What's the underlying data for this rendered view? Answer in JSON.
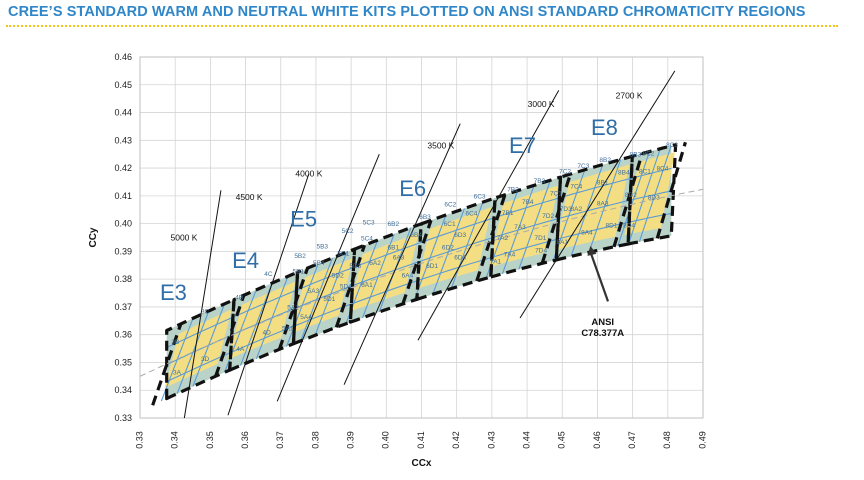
{
  "page": {
    "title": "CREE’S STANDARD WARM AND NEUTRAL WHITE KITS PLOTTED ON ANSI STANDARD CHROMATICITY REGIONS"
  },
  "colors": {
    "title": "#2f86c8",
    "title_rule": "#f0c417",
    "cree_kit_fill": "#f4de83",
    "ansi_quad_fill": "#b9d3c9",
    "grid_line": "#5b9bd5",
    "kit_outline": "#111111",
    "kit_label": "#2f6ea8",
    "cell_label": "#3f6f9b",
    "blackbody": "#aaaaaa"
  },
  "chart_data": {
    "type": "scatter",
    "title": "",
    "xlabel": "CCx",
    "ylabel": "CCy",
    "xlim": [
      0.33,
      0.49
    ],
    "ylim": [
      0.33,
      0.46
    ],
    "xticks": [
      0.33,
      0.34,
      0.35,
      0.36,
      0.37,
      0.38,
      0.39,
      0.4,
      0.41,
      0.42,
      0.43,
      0.44,
      0.45,
      0.46,
      0.47,
      0.48,
      0.49
    ],
    "xtick_labels": [
      "0.33",
      "0.34",
      "0.35",
      "0.36",
      "0.37",
      "0.38",
      "0.39",
      "0.40",
      "0.41",
      "0.42",
      "0.43",
      "0.44",
      "0.45",
      "0.46",
      "0.47",
      "0.48",
      "0.49"
    ],
    "yticks": [
      0.33,
      0.34,
      0.35,
      0.36,
      0.37,
      0.38,
      0.39,
      0.4,
      0.41,
      0.42,
      0.43,
      0.44,
      0.45,
      0.46
    ],
    "ytick_labels": [
      "0.33",
      "0.34",
      "0.35",
      "0.36",
      "0.37",
      "0.38",
      "0.39",
      "0.40",
      "0.41",
      "0.42",
      "0.43",
      "0.44",
      "0.45",
      "0.46"
    ],
    "grid": true,
    "kit_boundaries_x": [
      0.3376,
      0.3555,
      0.3736,
      0.3898,
      0.4087,
      0.4297,
      0.4483,
      0.4687,
      0.481
    ],
    "ansi_lines": [
      {
        "label": "5000 K",
        "from": [
          0.3426,
          0.33
        ],
        "to": [
          0.353,
          0.412
        ],
        "label_at": [
          0.3425,
          0.394
        ]
      },
      {
        "label": "4500 K",
        "from": [
          0.355,
          0.331
        ],
        "to": [
          0.378,
          0.418
        ],
        "label_at": [
          0.361,
          0.4085
        ]
      },
      {
        "label": "4000 K",
        "from": [
          0.369,
          0.336
        ],
        "to": [
          0.398,
          0.425
        ],
        "label_at": [
          0.378,
          0.417
        ]
      },
      {
        "label": "3500 K",
        "from": [
          0.388,
          0.342
        ],
        "to": [
          0.421,
          0.436
        ],
        "label_at": [
          0.4155,
          0.427
        ]
      },
      {
        "label": "3000 K",
        "from": [
          0.409,
          0.358
        ],
        "to": [
          0.449,
          0.448
        ],
        "label_at": [
          0.444,
          0.442
        ]
      },
      {
        "label": "2700 K",
        "from": [
          0.438,
          0.366
        ],
        "to": [
          0.482,
          0.455
        ],
        "label_at": [
          0.469,
          0.445
        ]
      }
    ],
    "kit_labels": [
      {
        "label": "E3",
        "at": [
          0.3395,
          0.3725
        ]
      },
      {
        "label": "E4",
        "at": [
          0.36,
          0.384
        ]
      },
      {
        "label": "E5",
        "at": [
          0.3765,
          0.399
        ]
      },
      {
        "label": "E6",
        "at": [
          0.4075,
          0.41
        ]
      },
      {
        "label": "E7",
        "at": [
          0.4387,
          0.4255
        ]
      },
      {
        "label": "E8",
        "at": [
          0.462,
          0.432
        ]
      }
    ],
    "cell_labels": [
      {
        "label": "3B",
        "at": [
          0.34,
          0.3575
        ]
      },
      {
        "label": "3C",
        "at": [
          0.3485,
          0.3685
        ]
      },
      {
        "label": "3A",
        "at": [
          0.3405,
          0.3465
        ]
      },
      {
        "label": "3D",
        "at": [
          0.3485,
          0.3515
        ]
      },
      {
        "label": "4B",
        "at": [
          0.3582,
          0.3735
        ]
      },
      {
        "label": "4C",
        "at": [
          0.3665,
          0.382
        ]
      },
      {
        "label": "4A",
        "at": [
          0.3585,
          0.355
        ]
      },
      {
        "label": "4D",
        "at": [
          0.366,
          0.361
        ]
      },
      {
        "label": "5B2",
        "at": [
          0.3755,
          0.3885
        ]
      },
      {
        "label": "5B1",
        "at": [
          0.375,
          0.383
        ]
      },
      {
        "label": "5A2",
        "at": [
          0.3735,
          0.37
        ]
      },
      {
        "label": "5A1",
        "at": [
          0.372,
          0.3625
        ]
      },
      {
        "label": "5B3",
        "at": [
          0.3818,
          0.392
        ]
      },
      {
        "label": "5B4",
        "at": [
          0.3808,
          0.386
        ]
      },
      {
        "label": "5A3",
        "at": [
          0.3793,
          0.376
        ]
      },
      {
        "label": "5A4",
        "at": [
          0.3772,
          0.3665
        ]
      },
      {
        "label": "5C2",
        "at": [
          0.389,
          0.3975
        ]
      },
      {
        "label": "5C1",
        "at": [
          0.3878,
          0.3895
        ]
      },
      {
        "label": "5D2",
        "at": [
          0.3862,
          0.3815
        ]
      },
      {
        "label": "5D1",
        "at": [
          0.3838,
          0.373
        ]
      },
      {
        "label": "5C3",
        "at": [
          0.395,
          0.4005
        ]
      },
      {
        "label": "5C4",
        "at": [
          0.3945,
          0.3948
        ]
      },
      {
        "label": "5D3",
        "at": [
          0.3912,
          0.385
        ]
      },
      {
        "label": "5D4",
        "at": [
          0.3885,
          0.3775
        ]
      },
      {
        "label": "6B2",
        "at": [
          0.402,
          0.4
        ]
      },
      {
        "label": "6B1",
        "at": [
          0.402,
          0.3915
        ]
      },
      {
        "label": "6A2",
        "at": [
          0.3968,
          0.386
        ]
      },
      {
        "label": "6A1",
        "at": [
          0.3945,
          0.378
        ]
      },
      {
        "label": "6B3",
        "at": [
          0.411,
          0.4025
        ]
      },
      {
        "label": "6B4",
        "at": [
          0.4085,
          0.396
        ]
      },
      {
        "label": "6A3",
        "at": [
          0.4035,
          0.388
        ]
      },
      {
        "label": "6A4",
        "at": [
          0.406,
          0.3815
        ]
      },
      {
        "label": "6C2",
        "at": [
          0.4182,
          0.407
        ]
      },
      {
        "label": "6C1",
        "at": [
          0.418,
          0.4
        ]
      },
      {
        "label": "6D2",
        "at": [
          0.4175,
          0.3915
        ]
      },
      {
        "label": "6D1",
        "at": [
          0.413,
          0.385
        ]
      },
      {
        "label": "6C3",
        "at": [
          0.4265,
          0.41
        ]
      },
      {
        "label": "6C4",
        "at": [
          0.4242,
          0.4038
        ]
      },
      {
        "label": "6D3",
        "at": [
          0.421,
          0.396
        ]
      },
      {
        "label": "6D4",
        "at": [
          0.421,
          0.388
        ]
      },
      {
        "label": "7B2",
        "at": [
          0.436,
          0.4125
        ]
      },
      {
        "label": "7B1",
        "at": [
          0.4345,
          0.404
        ]
      },
      {
        "label": "7A2",
        "at": [
          0.433,
          0.395
        ]
      },
      {
        "label": "7A1",
        "at": [
          0.431,
          0.3865
        ]
      },
      {
        "label": "7B3",
        "at": [
          0.4435,
          0.4155
        ]
      },
      {
        "label": "7B4",
        "at": [
          0.4402,
          0.408
        ]
      },
      {
        "label": "7A3",
        "at": [
          0.438,
          0.399
        ]
      },
      {
        "label": "7A4",
        "at": [
          0.435,
          0.389
        ]
      },
      {
        "label": "7C2",
        "at": [
          0.4508,
          0.419
        ]
      },
      {
        "label": "7C1",
        "at": [
          0.4482,
          0.411
        ]
      },
      {
        "label": "7D2",
        "at": [
          0.446,
          0.403
        ]
      },
      {
        "label": "7D1",
        "at": [
          0.4438,
          0.395
        ]
      },
      {
        "label": "7C3",
        "at": [
          0.456,
          0.421
        ]
      },
      {
        "label": "7C4",
        "at": [
          0.454,
          0.4135
        ]
      },
      {
        "label": "7D3",
        "at": [
          0.451,
          0.4055
        ]
      },
      {
        "label": "7D4",
        "at": [
          0.444,
          0.3905
        ]
      },
      {
        "label": "8B2",
        "at": [
          0.4622,
          0.423
        ]
      },
      {
        "label": "8B1",
        "at": [
          0.4615,
          0.415
        ]
      },
      {
        "label": "8A2",
        "at": [
          0.454,
          0.4055
        ]
      },
      {
        "label": "8A1",
        "at": [
          0.45,
          0.3935
        ]
      },
      {
        "label": "8B3",
        "at": [
          0.4708,
          0.425
        ]
      },
      {
        "label": "8B4",
        "at": [
          0.4675,
          0.4185
        ]
      },
      {
        "label": "8A3",
        "at": [
          0.4615,
          0.4075
        ]
      },
      {
        "label": "8A4",
        "at": [
          0.457,
          0.397
        ]
      },
      {
        "label": "8C2",
        "at": [
          0.4745,
          0.4255
        ]
      },
      {
        "label": "8C1",
        "at": [
          0.4735,
          0.419
        ]
      },
      {
        "label": "8D2",
        "at": [
          0.4695,
          0.4105
        ]
      },
      {
        "label": "8D1",
        "at": [
          0.464,
          0.3995
        ]
      },
      {
        "label": "8C3",
        "at": [
          0.4812,
          0.4285
        ]
      },
      {
        "label": "8C4",
        "at": [
          0.4785,
          0.42
        ]
      },
      {
        "label": "8D3",
        "at": [
          0.476,
          0.4095
        ]
      },
      {
        "label": "8D4",
        "at": [
          0.469,
          0.3995
        ]
      }
    ],
    "annotation": {
      "lines": [
        "ANSI",
        "C78.377A"
      ],
      "text_at": [
        0.4615,
        0.3635
      ],
      "arrow_from": [
        0.463,
        0.372
      ],
      "arrow_to": [
        0.458,
        0.392
      ]
    }
  }
}
